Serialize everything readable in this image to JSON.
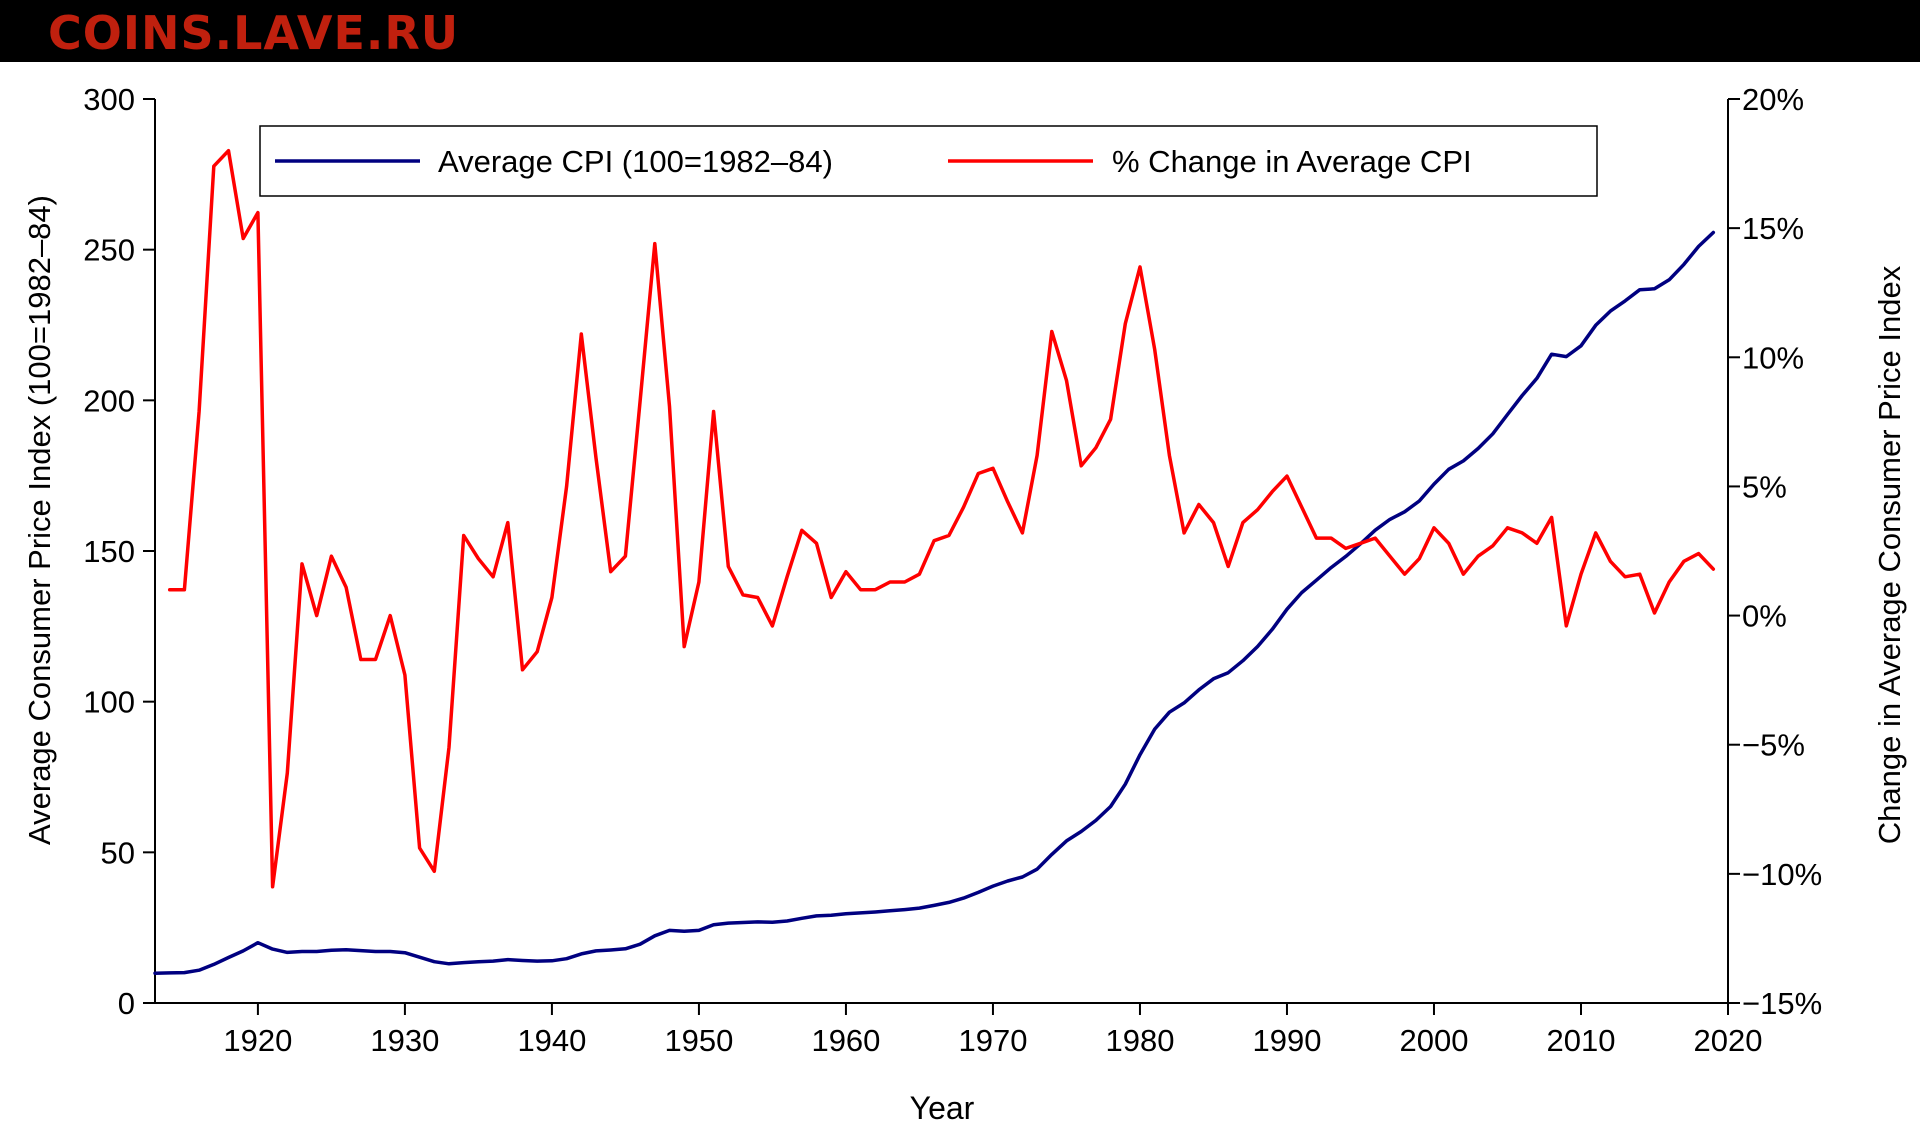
{
  "watermark": {
    "text": "COINS.LAVE.RU",
    "color": "#c0200e"
  },
  "colors": {
    "cpi_line": "#000080",
    "pct_line": "#ff0000",
    "axis": "#000000",
    "background": "#ffffff"
  },
  "chart_data": {
    "type": "line",
    "title": "",
    "xlabel": "Year",
    "ylabel_left": "Average Consumer Price Index (100=1982–84)",
    "ylabel_right": "Change in Average Consumer Price Index",
    "xlim": [
      1913,
      2020
    ],
    "ylim_left": [
      0,
      300
    ],
    "ylim_right": [
      -15,
      20
    ],
    "grid": false,
    "legend": {
      "placement": "top-center"
    },
    "x_ticks": [
      {
        "value": 1920,
        "label": "1920"
      },
      {
        "value": 1930,
        "label": "1930"
      },
      {
        "value": 1940,
        "label": "1940"
      },
      {
        "value": 1950,
        "label": "1950"
      },
      {
        "value": 1960,
        "label": "1960"
      },
      {
        "value": 1970,
        "label": "1970"
      },
      {
        "value": 1980,
        "label": "1980"
      },
      {
        "value": 1990,
        "label": "1990"
      },
      {
        "value": 2000,
        "label": "2000"
      },
      {
        "value": 2010,
        "label": "2010"
      },
      {
        "value": 2020,
        "label": "2020"
      }
    ],
    "y_ticks_left": [
      {
        "value": 0,
        "label": "0"
      },
      {
        "value": 50,
        "label": "50"
      },
      {
        "value": 100,
        "label": "100"
      },
      {
        "value": 150,
        "label": "150"
      },
      {
        "value": 200,
        "label": "200"
      },
      {
        "value": 250,
        "label": "250"
      },
      {
        "value": 300,
        "label": "300"
      }
    ],
    "y_ticks_right": [
      {
        "value": -15,
        "label": "−15%"
      },
      {
        "value": -10,
        "label": "−10%"
      },
      {
        "value": -5,
        "label": "−5%"
      },
      {
        "value": 0,
        "label": "0%"
      },
      {
        "value": 5,
        "label": "5%"
      },
      {
        "value": 10,
        "label": "10%"
      },
      {
        "value": 15,
        "label": "15%"
      },
      {
        "value": 20,
        "label": "20%"
      }
    ],
    "series": [
      {
        "name": "Average CPI (100=1982–84)",
        "axis": "left",
        "color": "#000080",
        "x": [
          1913,
          1914,
          1915,
          1916,
          1917,
          1918,
          1919,
          1920,
          1921,
          1922,
          1923,
          1924,
          1925,
          1926,
          1927,
          1928,
          1929,
          1930,
          1931,
          1932,
          1933,
          1934,
          1935,
          1936,
          1937,
          1938,
          1939,
          1940,
          1941,
          1942,
          1943,
          1944,
          1945,
          1946,
          1947,
          1948,
          1949,
          1950,
          1951,
          1952,
          1953,
          1954,
          1955,
          1956,
          1957,
          1958,
          1959,
          1960,
          1961,
          1962,
          1963,
          1964,
          1965,
          1966,
          1967,
          1968,
          1969,
          1970,
          1971,
          1972,
          1973,
          1974,
          1975,
          1976,
          1977,
          1978,
          1979,
          1980,
          1981,
          1982,
          1983,
          1984,
          1985,
          1986,
          1987,
          1988,
          1989,
          1990,
          1991,
          1992,
          1993,
          1994,
          1995,
          1996,
          1997,
          1998,
          1999,
          2000,
          2001,
          2002,
          2003,
          2004,
          2005,
          2006,
          2007,
          2008,
          2009,
          2010,
          2011,
          2012,
          2013,
          2014,
          2015,
          2016,
          2017,
          2018,
          2019
        ],
        "values": [
          9.9,
          10.0,
          10.1,
          10.9,
          12.8,
          15.1,
          17.3,
          20.0,
          17.9,
          16.8,
          17.1,
          17.1,
          17.5,
          17.7,
          17.4,
          17.1,
          17.1,
          16.7,
          15.2,
          13.7,
          13.0,
          13.4,
          13.7,
          13.9,
          14.4,
          14.1,
          13.9,
          14.0,
          14.7,
          16.3,
          17.3,
          17.6,
          18.0,
          19.5,
          22.3,
          24.1,
          23.8,
          24.1,
          26.0,
          26.5,
          26.7,
          26.9,
          26.8,
          27.2,
          28.1,
          28.9,
          29.1,
          29.6,
          29.9,
          30.2,
          30.6,
          31.0,
          31.5,
          32.4,
          33.4,
          34.8,
          36.7,
          38.8,
          40.5,
          41.8,
          44.4,
          49.3,
          53.8,
          56.9,
          60.6,
          65.2,
          72.6,
          82.4,
          90.9,
          96.5,
          99.6,
          103.9,
          107.6,
          109.6,
          113.6,
          118.3,
          124.0,
          130.7,
          136.2,
          140.3,
          144.5,
          148.2,
          152.4,
          156.9,
          160.5,
          163.0,
          166.6,
          172.2,
          177.1,
          179.9,
          184.0,
          188.9,
          195.3,
          201.6,
          207.3,
          215.3,
          214.5,
          218.1,
          224.9,
          229.6,
          233.0,
          236.7,
          237.0,
          240.0,
          245.1,
          251.1,
          255.7
        ]
      },
      {
        "name": "% Change in Average CPI",
        "axis": "right",
        "color": "#ff0000",
        "x": [
          1914,
          1915,
          1916,
          1917,
          1918,
          1919,
          1920,
          1921,
          1922,
          1923,
          1924,
          1925,
          1926,
          1927,
          1928,
          1929,
          1930,
          1931,
          1932,
          1933,
          1934,
          1935,
          1936,
          1937,
          1938,
          1939,
          1940,
          1941,
          1942,
          1943,
          1944,
          1945,
          1946,
          1947,
          1948,
          1949,
          1950,
          1951,
          1952,
          1953,
          1954,
          1955,
          1956,
          1957,
          1958,
          1959,
          1960,
          1961,
          1962,
          1963,
          1964,
          1965,
          1966,
          1967,
          1968,
          1969,
          1970,
          1971,
          1972,
          1973,
          1974,
          1975,
          1976,
          1977,
          1978,
          1979,
          1980,
          1981,
          1982,
          1983,
          1984,
          1985,
          1986,
          1987,
          1988,
          1989,
          1990,
          1991,
          1992,
          1993,
          1994,
          1995,
          1996,
          1997,
          1998,
          1999,
          2000,
          2001,
          2002,
          2003,
          2004,
          2005,
          2006,
          2007,
          2008,
          2009,
          2010,
          2011,
          2012,
          2013,
          2014,
          2015,
          2016,
          2017,
          2018,
          2019
        ],
        "values": [
          1.0,
          1.0,
          7.9,
          17.4,
          18.0,
          14.6,
          15.6,
          -10.5,
          -6.1,
          2.0,
          0.0,
          2.3,
          1.1,
          -1.7,
          -1.7,
          0.0,
          -2.3,
          -9.0,
          -9.9,
          -5.1,
          3.1,
          2.2,
          1.5,
          3.6,
          -2.1,
          -1.4,
          0.7,
          5.0,
          10.9,
          6.1,
          1.7,
          2.3,
          8.3,
          14.4,
          8.1,
          -1.2,
          1.3,
          7.9,
          1.9,
          0.8,
          0.7,
          -0.4,
          1.5,
          3.3,
          2.8,
          0.7,
          1.7,
          1.0,
          1.0,
          1.3,
          1.3,
          1.6,
          2.9,
          3.1,
          4.2,
          5.5,
          5.7,
          4.4,
          3.2,
          6.2,
          11.0,
          9.1,
          5.8,
          6.5,
          7.6,
          11.3,
          13.5,
          10.3,
          6.2,
          3.2,
          4.3,
          3.6,
          1.9,
          3.6,
          4.1,
          4.8,
          5.4,
          4.2,
          3.0,
          3.0,
          2.6,
          2.8,
          3.0,
          2.3,
          1.6,
          2.2,
          3.4,
          2.8,
          1.6,
          2.3,
          2.7,
          3.4,
          3.2,
          2.8,
          3.8,
          -0.4,
          1.6,
          3.2,
          2.1,
          1.5,
          1.6,
          0.1,
          1.3,
          2.1,
          2.4,
          1.8
        ]
      }
    ]
  }
}
